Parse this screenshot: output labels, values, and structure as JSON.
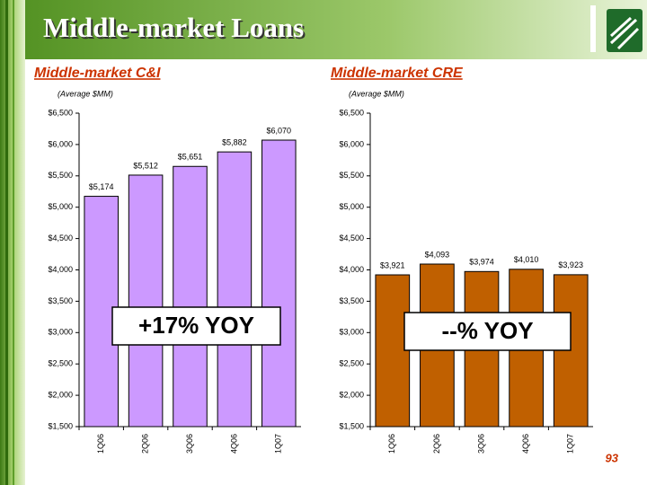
{
  "title": "Middle-market Loans",
  "page_number": "93",
  "chart_data": [
    {
      "type": "bar",
      "title": "Middle-market C&I",
      "subtitle": "(Average $MM)",
      "categories": [
        "1Q06",
        "2Q06",
        "3Q06",
        "4Q06",
        "1Q07"
      ],
      "values": [
        5174,
        5512,
        5651,
        5882,
        6070
      ],
      "value_labels": [
        "$5,174",
        "$5,512",
        "$5,651",
        "$5,882",
        "$6,070"
      ],
      "color": "#cc99ff",
      "annotation": "+17% YOY",
      "ylim": [
        1500,
        6500
      ],
      "yticks": [
        {
          "value": 1500,
          "label": "$1,500"
        },
        {
          "value": 2000,
          "label": "$2,000"
        },
        {
          "value": 2500,
          "label": "$2,500"
        },
        {
          "value": 3000,
          "label": "$3,000"
        },
        {
          "value": 3500,
          "label": "$3,500"
        },
        {
          "value": 4000,
          "label": "$4,000"
        },
        {
          "value": 4500,
          "label": "$4,500"
        },
        {
          "value": 5000,
          "label": "$5,000"
        },
        {
          "value": 5500,
          "label": "$5,500"
        },
        {
          "value": 6000,
          "label": "$6,000"
        },
        {
          "value": 6500,
          "label": "$6,500"
        }
      ]
    },
    {
      "type": "bar",
      "title": "Middle-market CRE",
      "subtitle": "(Average $MM)",
      "categories": [
        "1Q06",
        "2Q06",
        "3Q06",
        "4Q06",
        "1Q07"
      ],
      "values": [
        3921,
        4093,
        3974,
        4010,
        3923
      ],
      "value_labels": [
        "$3,921",
        "$4,093",
        "$3,974",
        "$4,010",
        "$3,923"
      ],
      "color": "#c06000",
      "annotation": "--% YOY",
      "ylim": [
        1500,
        6500
      ],
      "yticks": [
        {
          "value": 1500,
          "label": "$1,500"
        },
        {
          "value": 2000,
          "label": "$2,000"
        },
        {
          "value": 2500,
          "label": "$2,500"
        },
        {
          "value": 3000,
          "label": "$3,000"
        },
        {
          "value": 3500,
          "label": "$3,500"
        },
        {
          "value": 4000,
          "label": "$4,000"
        },
        {
          "value": 4500,
          "label": "$4,500"
        },
        {
          "value": 5000,
          "label": "$5,000"
        },
        {
          "value": 5500,
          "label": "$5,500"
        },
        {
          "value": 6000,
          "label": "$6,000"
        },
        {
          "value": 6500,
          "label": "$6,500"
        }
      ]
    }
  ]
}
